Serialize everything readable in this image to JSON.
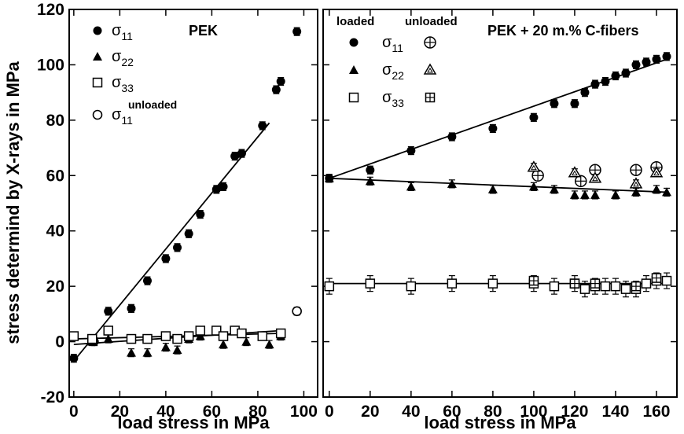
{
  "figure": {
    "ylabel": "stress determind by X-rays in MPa"
  },
  "chart_data": [
    {
      "type": "scatter",
      "panel_label": "PEK",
      "xlabel": "load stress in MPa",
      "ylabel": "stress determind by X-rays in MPa",
      "xlim": [
        -2,
        106
      ],
      "ylim": [
        -20,
        120
      ],
      "xticks": [
        0,
        20,
        40,
        60,
        80,
        100
      ],
      "yticks": [
        -20,
        0,
        20,
        40,
        60,
        80,
        100,
        120
      ],
      "legend_placement": "top-left",
      "series": [
        {
          "name": "σ11",
          "name_main": "σ",
          "name_sub": "11",
          "name_sup": "",
          "marker": "filled-circle",
          "x": [
            0,
            9,
            15,
            25,
            32,
            40,
            45,
            50,
            55,
            62,
            65,
            70,
            73,
            82,
            88,
            90,
            97
          ],
          "y": [
            -6,
            0,
            11,
            12,
            22,
            30,
            34,
            39,
            46,
            55,
            56,
            67,
            68,
            78,
            91,
            94,
            112
          ]
        },
        {
          "name": "σ22",
          "name_main": "σ",
          "name_sub": "22",
          "name_sup": "",
          "marker": "filled-triangle",
          "x": [
            0,
            8,
            15,
            25,
            32,
            40,
            45,
            50,
            55,
            65,
            75,
            85,
            90
          ],
          "y": [
            2,
            0,
            1,
            -4,
            -4,
            -2,
            -3,
            1,
            2,
            -1,
            0,
            -1,
            2
          ]
        },
        {
          "name": "σ33",
          "name_main": "σ",
          "name_sub": "33",
          "name_sup": "",
          "marker": "open-square",
          "x": [
            0,
            8,
            15,
            25,
            32,
            40,
            45,
            50,
            55,
            62,
            65,
            70,
            73,
            82,
            90
          ],
          "y": [
            2,
            1,
            4,
            1,
            1,
            2,
            1,
            2,
            4,
            4,
            2,
            4,
            3,
            2,
            3
          ]
        },
        {
          "name": "σ11 unloaded",
          "name_main": "σ",
          "name_sub": "11",
          "name_sup": "unloaded",
          "marker": "open-circle",
          "x": [
            97
          ],
          "y": [
            11
          ]
        }
      ],
      "fit_lines": [
        {
          "x": [
            0,
            85
          ],
          "y": [
            -7,
            79
          ]
        },
        {
          "x": [
            0,
            90
          ],
          "y": [
            -1,
            4
          ]
        },
        {
          "x": [
            0,
            90
          ],
          "y": [
            1,
            3
          ]
        }
      ]
    },
    {
      "type": "scatter",
      "panel_label": "PEK + 20 m.% C-fibers",
      "xlabel": "load stress in MPa",
      "xlim": [
        -3,
        170
      ],
      "ylim": [
        -20,
        120
      ],
      "xticks": [
        0,
        20,
        40,
        60,
        80,
        100,
        120,
        140,
        160
      ],
      "yticks": [
        -20,
        0,
        20,
        40,
        60,
        80,
        100,
        120
      ],
      "legend_placement": "top-left",
      "legend_columns": [
        "loaded",
        "unloaded"
      ],
      "series": [
        {
          "name": "σ11 loaded",
          "name_main": "σ",
          "name_sub": "11",
          "marker": "filled-circle",
          "x": [
            0,
            20,
            40,
            60,
            80,
            100,
            110,
            120,
            125,
            130,
            135,
            140,
            145,
            150,
            155,
            160,
            165
          ],
          "y": [
            59,
            62,
            69,
            74,
            77,
            81,
            86,
            86,
            90,
            93,
            94,
            96,
            97,
            100,
            101,
            102,
            103
          ]
        },
        {
          "name": "σ22 loaded",
          "name_main": "σ",
          "name_sub": "22",
          "marker": "filled-triangle",
          "x": [
            0,
            20,
            40,
            60,
            80,
            100,
            110,
            120,
            125,
            130,
            140,
            150,
            160,
            165
          ],
          "y": [
            59,
            58,
            56,
            57,
            55,
            56,
            55,
            53,
            53,
            53,
            53,
            54,
            55,
            54
          ]
        },
        {
          "name": "σ33 loaded",
          "name_main": "σ",
          "name_sub": "33",
          "marker": "open-square",
          "x": [
            0,
            20,
            40,
            60,
            80,
            100,
            110,
            120,
            125,
            130,
            135,
            140,
            145,
            150,
            155,
            160,
            165
          ],
          "y": [
            20,
            21,
            20,
            21,
            21,
            21,
            20,
            21,
            19,
            20,
            20,
            20,
            19,
            19,
            21,
            22,
            22
          ]
        },
        {
          "name": "σ11 unloaded",
          "marker": "circle-plus",
          "x": [
            102,
            123,
            130,
            150,
            160
          ],
          "y": [
            60,
            58,
            62,
            62,
            63
          ]
        },
        {
          "name": "σ22 unloaded",
          "marker": "triangle-open",
          "x": [
            100,
            120,
            130,
            150,
            160
          ],
          "y": [
            63,
            61,
            59,
            57,
            61
          ]
        },
        {
          "name": "σ33 unloaded",
          "marker": "square-plus",
          "x": [
            100,
            120,
            130,
            150,
            160
          ],
          "y": [
            22,
            21,
            21,
            20,
            23
          ]
        }
      ],
      "fit_lines": [
        {
          "x": [
            0,
            165
          ],
          "y": [
            59,
            102
          ]
        },
        {
          "x": [
            0,
            165
          ],
          "y": [
            59,
            54
          ]
        },
        {
          "x": [
            0,
            165
          ],
          "y": [
            21,
            21
          ]
        }
      ]
    }
  ]
}
